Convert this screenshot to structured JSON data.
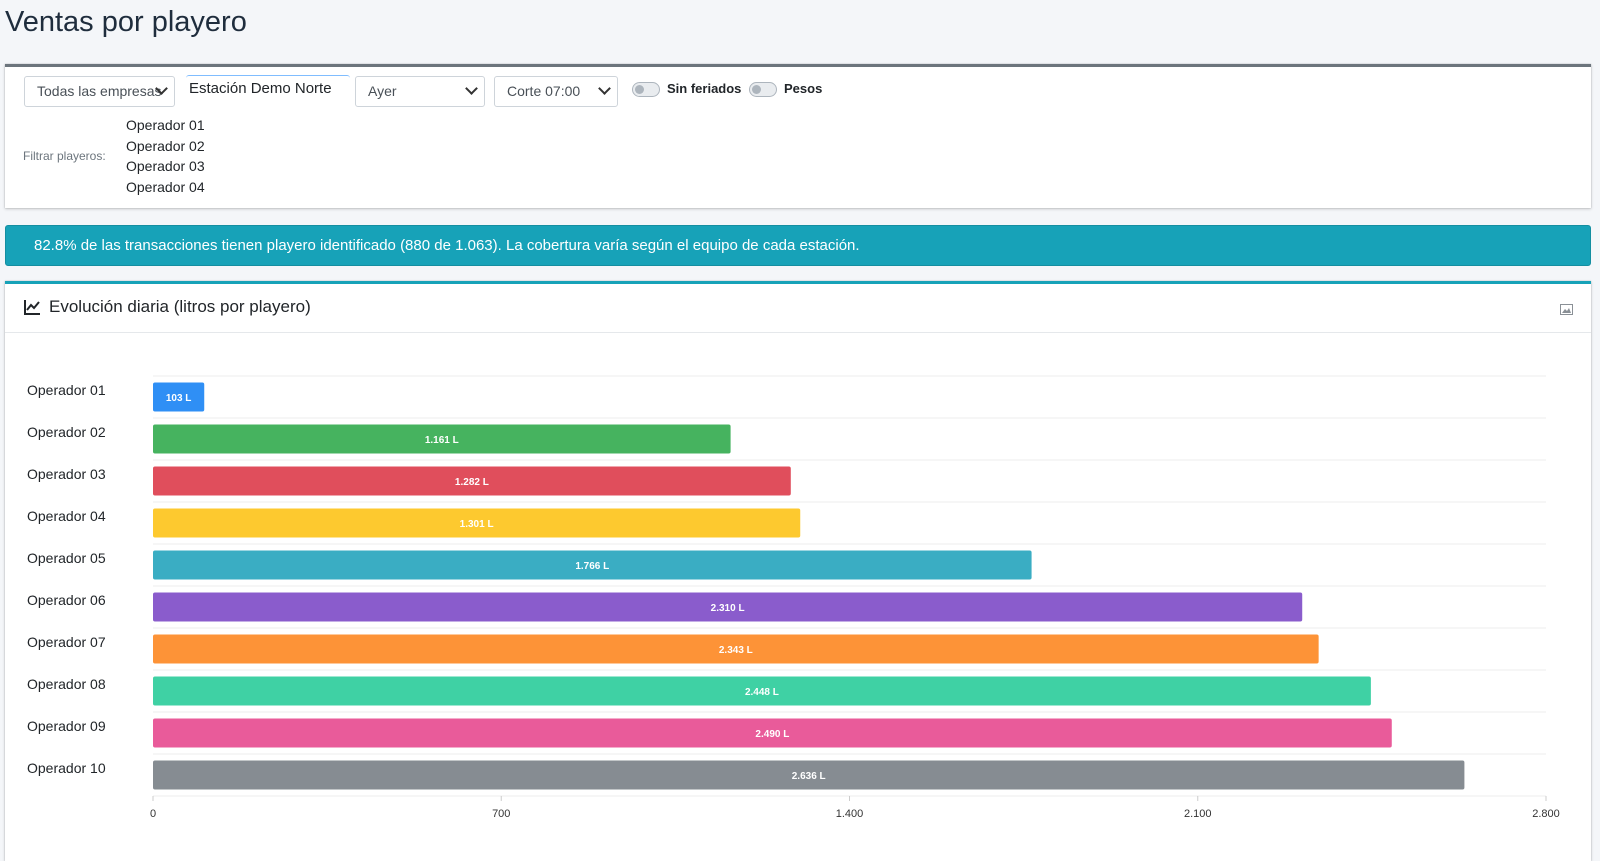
{
  "page": {
    "title": "Ventas por playero"
  },
  "filters": {
    "company_select": "Todas las empresas",
    "station_input": "Estación Demo Norte",
    "period_select": "Ayer",
    "cut_select": "Corte 07:00",
    "toggle_holidays_label": "Sin feriados",
    "toggle_pesos_label": "Pesos",
    "filter_label": "Filtrar playeros:",
    "operators": [
      "Operador 01",
      "Operador 02",
      "Operador 03",
      "Operador 04"
    ]
  },
  "alert": {
    "text": "82.8% de las transacciones tienen playero identificado (880 de 1.063). La cobertura varía según el equipo de cada estación."
  },
  "chart_card": {
    "title": "Evolución diaria (litros por playero)",
    "title_icon": "line-chart-icon",
    "export_icon": "image-icon"
  },
  "chart_data": {
    "type": "bar",
    "orientation": "horizontal",
    "categories": [
      "Operador 01",
      "Operador 02",
      "Operador 03",
      "Operador 04",
      "Operador 05",
      "Operador 06",
      "Operador 07",
      "Operador 08",
      "Operador 09",
      "Operador 10"
    ],
    "values": [
      103,
      1161,
      1282,
      1301,
      1766,
      2310,
      2343,
      2448,
      2490,
      2636
    ],
    "data_labels": [
      "103 L",
      "1.161 L",
      "1.282 L",
      "1.301 L",
      "1.766 L",
      "2.310 L",
      "2.343 L",
      "2.448 L",
      "2.490 L",
      "2.636 L"
    ],
    "colors": [
      "#2f8ff5",
      "#46b35f",
      "#e04e5c",
      "#fdc92f",
      "#3aadc3",
      "#8a5ccc",
      "#fd9337",
      "#3fd1a4",
      "#e95b9a",
      "#868c92"
    ],
    "xlim": [
      0,
      2800
    ],
    "x_ticks": [
      0,
      700,
      1400,
      2100,
      2800
    ],
    "x_tick_labels": [
      "0",
      "700",
      "1.400",
      "2.100",
      "2.800"
    ],
    "grid": true
  }
}
